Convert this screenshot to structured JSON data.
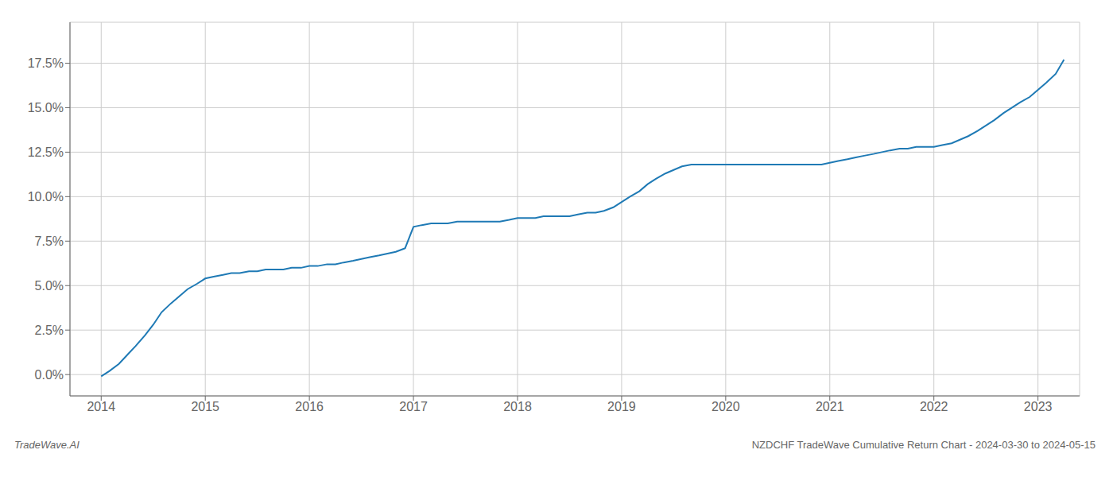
{
  "chart_data": {
    "type": "line",
    "x": [
      2014.0,
      2014.08,
      2014.17,
      2014.25,
      2014.33,
      2014.42,
      2014.5,
      2014.58,
      2014.67,
      2014.75,
      2014.83,
      2014.92,
      2015.0,
      2015.08,
      2015.17,
      2015.25,
      2015.33,
      2015.42,
      2015.5,
      2015.58,
      2015.67,
      2015.75,
      2015.83,
      2015.92,
      2016.0,
      2016.08,
      2016.17,
      2016.25,
      2016.33,
      2016.42,
      2016.5,
      2016.58,
      2016.67,
      2016.75,
      2016.83,
      2016.92,
      2017.0,
      2017.08,
      2017.17,
      2017.25,
      2017.33,
      2017.42,
      2017.5,
      2017.58,
      2017.67,
      2017.75,
      2017.83,
      2017.92,
      2018.0,
      2018.08,
      2018.17,
      2018.25,
      2018.33,
      2018.42,
      2018.5,
      2018.58,
      2018.67,
      2018.75,
      2018.83,
      2018.92,
      2019.0,
      2019.08,
      2019.17,
      2019.25,
      2019.33,
      2019.42,
      2019.5,
      2019.58,
      2019.67,
      2019.75,
      2019.83,
      2019.92,
      2020.0,
      2020.08,
      2020.17,
      2020.25,
      2020.33,
      2020.42,
      2020.5,
      2020.58,
      2020.67,
      2020.75,
      2020.83,
      2020.92,
      2021.0,
      2021.08,
      2021.17,
      2021.25,
      2021.33,
      2021.42,
      2021.5,
      2021.58,
      2021.67,
      2021.75,
      2021.83,
      2021.92,
      2022.0,
      2022.08,
      2022.17,
      2022.25,
      2022.33,
      2022.42,
      2022.5,
      2022.58,
      2022.67,
      2022.75,
      2022.83,
      2022.92,
      2023.0,
      2023.08,
      2023.17,
      2023.25
    ],
    "values": [
      -0.001,
      0.002,
      0.006,
      0.011,
      0.016,
      0.022,
      0.028,
      0.035,
      0.04,
      0.044,
      0.048,
      0.051,
      0.054,
      0.055,
      0.056,
      0.057,
      0.057,
      0.058,
      0.058,
      0.059,
      0.059,
      0.059,
      0.06,
      0.06,
      0.061,
      0.061,
      0.062,
      0.062,
      0.063,
      0.064,
      0.065,
      0.066,
      0.067,
      0.068,
      0.069,
      0.071,
      0.083,
      0.084,
      0.085,
      0.085,
      0.085,
      0.086,
      0.086,
      0.086,
      0.086,
      0.086,
      0.086,
      0.087,
      0.088,
      0.088,
      0.088,
      0.089,
      0.089,
      0.089,
      0.089,
      0.09,
      0.091,
      0.091,
      0.092,
      0.094,
      0.097,
      0.1,
      0.103,
      0.107,
      0.11,
      0.113,
      0.115,
      0.117,
      0.118,
      0.118,
      0.118,
      0.118,
      0.118,
      0.118,
      0.118,
      0.118,
      0.118,
      0.118,
      0.118,
      0.118,
      0.118,
      0.118,
      0.118,
      0.118,
      0.119,
      0.12,
      0.121,
      0.122,
      0.123,
      0.124,
      0.125,
      0.126,
      0.127,
      0.127,
      0.128,
      0.128,
      0.128,
      0.129,
      0.13,
      0.132,
      0.134,
      0.137,
      0.14,
      0.143,
      0.147,
      0.15,
      0.153,
      0.156,
      0.16,
      0.164,
      0.169,
      0.177
    ],
    "color": "#1f7ab5",
    "xlim": [
      2013.7,
      2023.4
    ],
    "xticks": [
      2014,
      2015,
      2016,
      2017,
      2018,
      2019,
      2020,
      2021,
      2022,
      2023
    ],
    "ylim": [
      -0.012,
      0.198
    ],
    "yticks": [
      {
        "value": 0.0,
        "label": "0.0%"
      },
      {
        "value": 0.025,
        "label": "2.5%"
      },
      {
        "value": 0.05,
        "label": "5.0%"
      },
      {
        "value": 0.075,
        "label": "7.5%"
      },
      {
        "value": 0.1,
        "label": "10.0%"
      },
      {
        "value": 0.125,
        "label": "12.5%"
      },
      {
        "value": 0.15,
        "label": "15.0%"
      },
      {
        "value": 0.175,
        "label": "17.5%"
      }
    ],
    "grid": true,
    "annotations": [
      "TradeWave.AI",
      "NZDCHF TradeWave Cumulative Return Chart - 2024-03-30 to 2024-05-15"
    ]
  }
}
